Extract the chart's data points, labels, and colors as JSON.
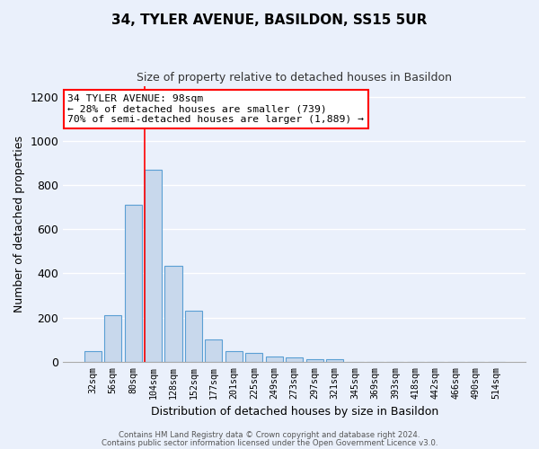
{
  "title": "34, TYLER AVENUE, BASILDON, SS15 5UR",
  "subtitle": "Size of property relative to detached houses in Basildon",
  "xlabel": "Distribution of detached houses by size in Basildon",
  "ylabel": "Number of detached properties",
  "footnote1": "Contains HM Land Registry data © Crown copyright and database right 2024.",
  "footnote2": "Contains public sector information licensed under the Open Government Licence v3.0.",
  "categories": [
    "32sqm",
    "56sqm",
    "80sqm",
    "104sqm",
    "128sqm",
    "152sqm",
    "177sqm",
    "201sqm",
    "225sqm",
    "249sqm",
    "273sqm",
    "297sqm",
    "321sqm",
    "345sqm",
    "369sqm",
    "393sqm",
    "418sqm",
    "442sqm",
    "466sqm",
    "490sqm",
    "514sqm"
  ],
  "values": [
    50,
    210,
    710,
    870,
    435,
    230,
    100,
    48,
    40,
    25,
    18,
    10,
    10,
    0,
    0,
    0,
    0,
    0,
    0,
    0,
    0
  ],
  "bar_color": "#c8d8ec",
  "bar_edge_color": "#5a9fd4",
  "background_color": "#eaf0fb",
  "grid_color": "#ffffff",
  "vline_x_index": 3,
  "vline_color": "red",
  "annotation_text": "34 TYLER AVENUE: 98sqm\n← 28% of detached houses are smaller (739)\n70% of semi-detached houses are larger (1,889) →",
  "annotation_box_edge": "red",
  "ylim": [
    0,
    1250
  ],
  "yticks": [
    0,
    200,
    400,
    600,
    800,
    1000,
    1200
  ],
  "title_fontsize": 11,
  "subtitle_fontsize": 9
}
